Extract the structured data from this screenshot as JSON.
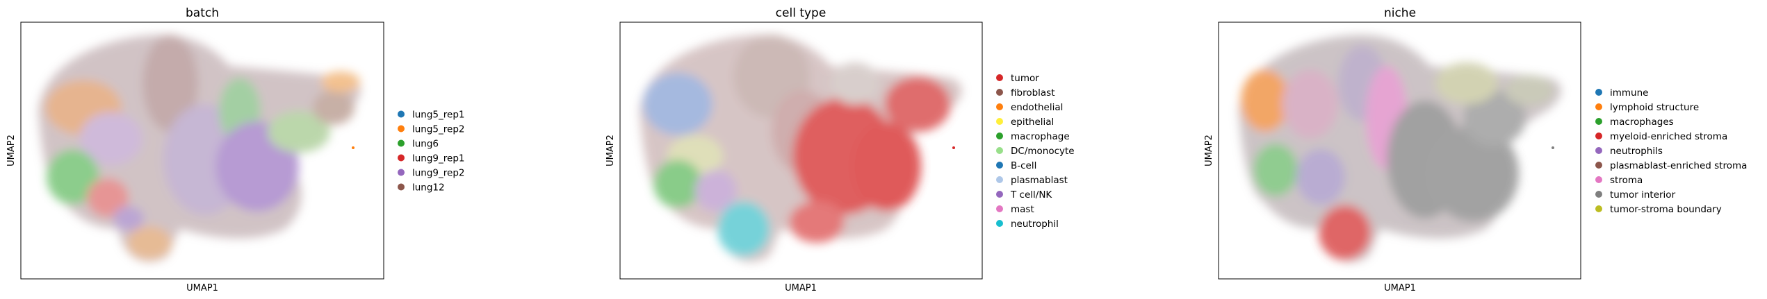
{
  "chart_data": [
    {
      "type": "scatter",
      "title": "batch",
      "xlabel": "UMAP1",
      "ylabel": "UMAP2",
      "grid": false,
      "legend_position": "right",
      "series": [
        {
          "name": "lung5_rep1",
          "color": "#1f77b4"
        },
        {
          "name": "lung5_rep2",
          "color": "#ff7f0e"
        },
        {
          "name": "lung6",
          "color": "#2ca02c"
        },
        {
          "name": "lung9_rep1",
          "color": "#d62728"
        },
        {
          "name": "lung9_rep2",
          "color": "#9467bd"
        },
        {
          "name": "lung12",
          "color": "#8c564b"
        }
      ]
    },
    {
      "type": "scatter",
      "title": "cell type",
      "xlabel": "UMAP1",
      "ylabel": "UMAP2",
      "grid": false,
      "legend_position": "right",
      "series": [
        {
          "name": "tumor",
          "color": "#d62728"
        },
        {
          "name": "fibroblast",
          "color": "#8c564b"
        },
        {
          "name": "endothelial",
          "color": "#ff7f0e"
        },
        {
          "name": "epithelial",
          "color": "#ffef3a"
        },
        {
          "name": "macrophage",
          "color": "#2ca02c"
        },
        {
          "name": "DC/monocyte",
          "color": "#98df8a"
        },
        {
          "name": "B-cell",
          "color": "#1f77b4"
        },
        {
          "name": "plasmablast",
          "color": "#aec7e8"
        },
        {
          "name": "T cell/NK",
          "color": "#9467bd"
        },
        {
          "name": "mast",
          "color": "#e377c2"
        },
        {
          "name": "neutrophil",
          "color": "#17becf"
        }
      ]
    },
    {
      "type": "scatter",
      "title": "niche",
      "xlabel": "UMAP1",
      "ylabel": "UMAP2",
      "grid": false,
      "legend_position": "right",
      "series": [
        {
          "name": "immune",
          "color": "#1f77b4"
        },
        {
          "name": "lymphoid structure",
          "color": "#ff7f0e"
        },
        {
          "name": "macrophages",
          "color": "#2ca02c"
        },
        {
          "name": "myeloid-enriched stroma",
          "color": "#d62728"
        },
        {
          "name": "neutrophils",
          "color": "#9467bd"
        },
        {
          "name": "plasmablast-enriched stroma",
          "color": "#8c564b"
        },
        {
          "name": "stroma",
          "color": "#e377c2"
        },
        {
          "name": "tumor interior",
          "color": "#7f7f7f"
        },
        {
          "name": "tumor-stroma boundary",
          "color": "#bcbd22"
        }
      ]
    }
  ]
}
